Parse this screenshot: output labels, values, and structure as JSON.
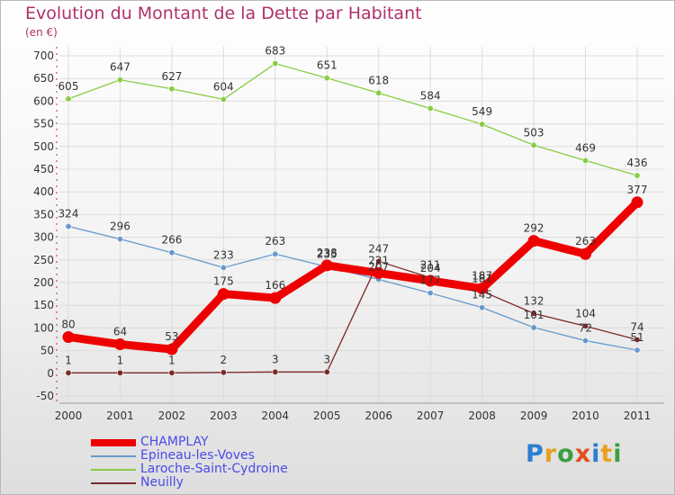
{
  "title": "Evolution du Montant de la Dette par Habitant",
  "subtitle": "(en €)",
  "logo": "Proxiti",
  "chart_data": {
    "type": "line",
    "title": "Evolution du Montant de la Dette par Habitant",
    "ylabel": "(en €)",
    "xlabel": "",
    "x": [
      "2000",
      "2001",
      "2002",
      "2003",
      "2004",
      "2005",
      "2006",
      "2007",
      "2008",
      "2009",
      "2010",
      "2011"
    ],
    "ylim": [
      -50,
      700
    ],
    "yticks": [
      "-50",
      "0",
      "50",
      "100",
      "150",
      "200",
      "250",
      "300",
      "350",
      "400",
      "450",
      "500",
      "550",
      "600",
      "650",
      "700"
    ],
    "grid": true,
    "legend_position": "bottom-left",
    "series": [
      {
        "name": "CHAMPLAY",
        "color": "#ee0000",
        "values": [
          80,
          64,
          53,
          175,
          166,
          238,
          221,
          204,
          187,
          292,
          263,
          377
        ],
        "labels": [
          "80",
          "64",
          "53",
          "175",
          "166",
          "238",
          "221",
          "204",
          "187",
          "292",
          "263",
          "377"
        ]
      },
      {
        "name": "Epineau-les-Voves",
        "color": "#6699cc",
        "values": [
          324,
          296,
          266,
          233,
          263,
          235,
          207,
          177,
          145,
          101,
          72,
          51
        ],
        "labels": [
          "324",
          "296",
          "266",
          "233",
          "263",
          "235",
          "207",
          "177",
          "145",
          "101",
          "72",
          "51"
        ]
      },
      {
        "name": "Laroche-Saint-Cydroine",
        "color": "#88cc44",
        "values": [
          605,
          647,
          627,
          604,
          683,
          651,
          618,
          584,
          549,
          503,
          469,
          436
        ],
        "labels": [
          "605",
          "647",
          "627",
          "604",
          "683",
          "651",
          "618",
          "584",
          "549",
          "503",
          "469",
          "436"
        ]
      },
      {
        "name": "Neuilly",
        "color": "#7a2a2a",
        "values": [
          1,
          1,
          1,
          2,
          3,
          3,
          247,
          211,
          181,
          132,
          104,
          74
        ],
        "labels": [
          "1",
          "1",
          "1",
          "2",
          "3",
          "3",
          "247",
          "211",
          "181",
          "132",
          "104",
          "74"
        ]
      }
    ]
  },
  "legend": [
    {
      "name": "CHAMPLAY",
      "color": "#ee0000"
    },
    {
      "name": "Epineau-les-Voves",
      "color": "#6699cc"
    },
    {
      "name": "Laroche-Saint-Cydroine",
      "color": "#88cc44"
    },
    {
      "name": "Neuilly",
      "color": "#7a2a2a"
    }
  ]
}
